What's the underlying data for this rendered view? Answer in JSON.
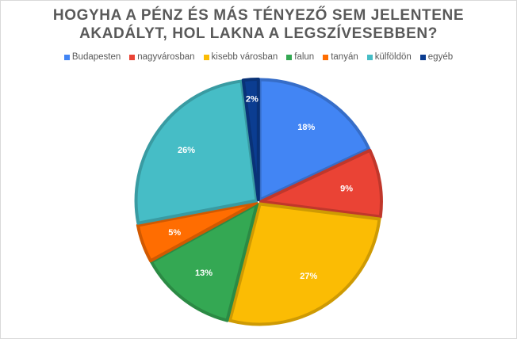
{
  "chart_data": {
    "type": "pie",
    "title_lines": [
      "HOGYHA A PÉNZ ÉS MÁS TÉNYEZŐ SEM JELENTENE",
      "AKADÁLYT, HOL LAKNA A LEGSZÍVESEBBEN?"
    ],
    "legend_position": "top",
    "slices": [
      {
        "name": "Budapesten",
        "value": 18,
        "label": "18%",
        "color": "#4285F4"
      },
      {
        "name": "nagyvárosban",
        "value": 9,
        "label": "9%",
        "color": "#EA4335"
      },
      {
        "name": "kisebb városban",
        "value": 27,
        "label": "27%",
        "color": "#FBBC04"
      },
      {
        "name": "falun",
        "value": 13,
        "label": "13%",
        "color": "#34A853"
      },
      {
        "name": "tanyán",
        "value": 5,
        "label": "5%",
        "color": "#FF6D01"
      },
      {
        "name": "külföldön",
        "value": 26,
        "label": "26%",
        "color": "#46BDC6"
      },
      {
        "name": "egyéb",
        "value": 2,
        "label": "2%",
        "color": "#0B3D91"
      }
    ]
  }
}
